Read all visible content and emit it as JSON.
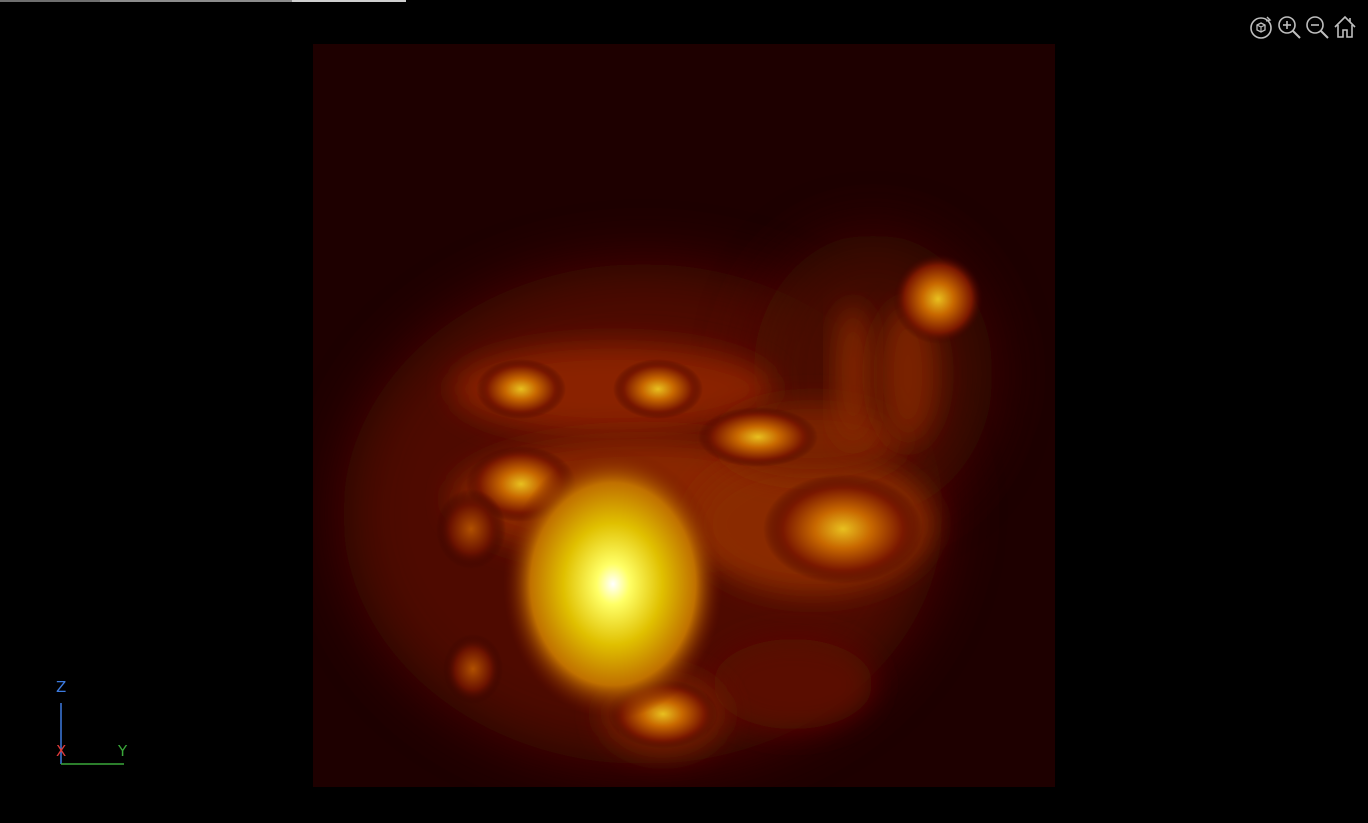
{
  "app": {
    "toolbar": {
      "rotate": {
        "icon": "rotate-3d-icon"
      },
      "zoom_in": {
        "icon": "zoom-in-icon"
      },
      "zoom_out": {
        "icon": "zoom-out-icon"
      },
      "home": {
        "icon": "home-icon"
      }
    },
    "toolbar_color": "#bfbfbf",
    "background_color": "#000000",
    "heatmap": {
      "colormap": "hot",
      "base_color": "#2a0000"
    },
    "axes_triad": {
      "z_label": "Z",
      "x_label": "X",
      "y_label": "Y",
      "z_color": "#3d7be0",
      "x_color": "#e03a3a",
      "y_color": "#3aa83a"
    }
  }
}
